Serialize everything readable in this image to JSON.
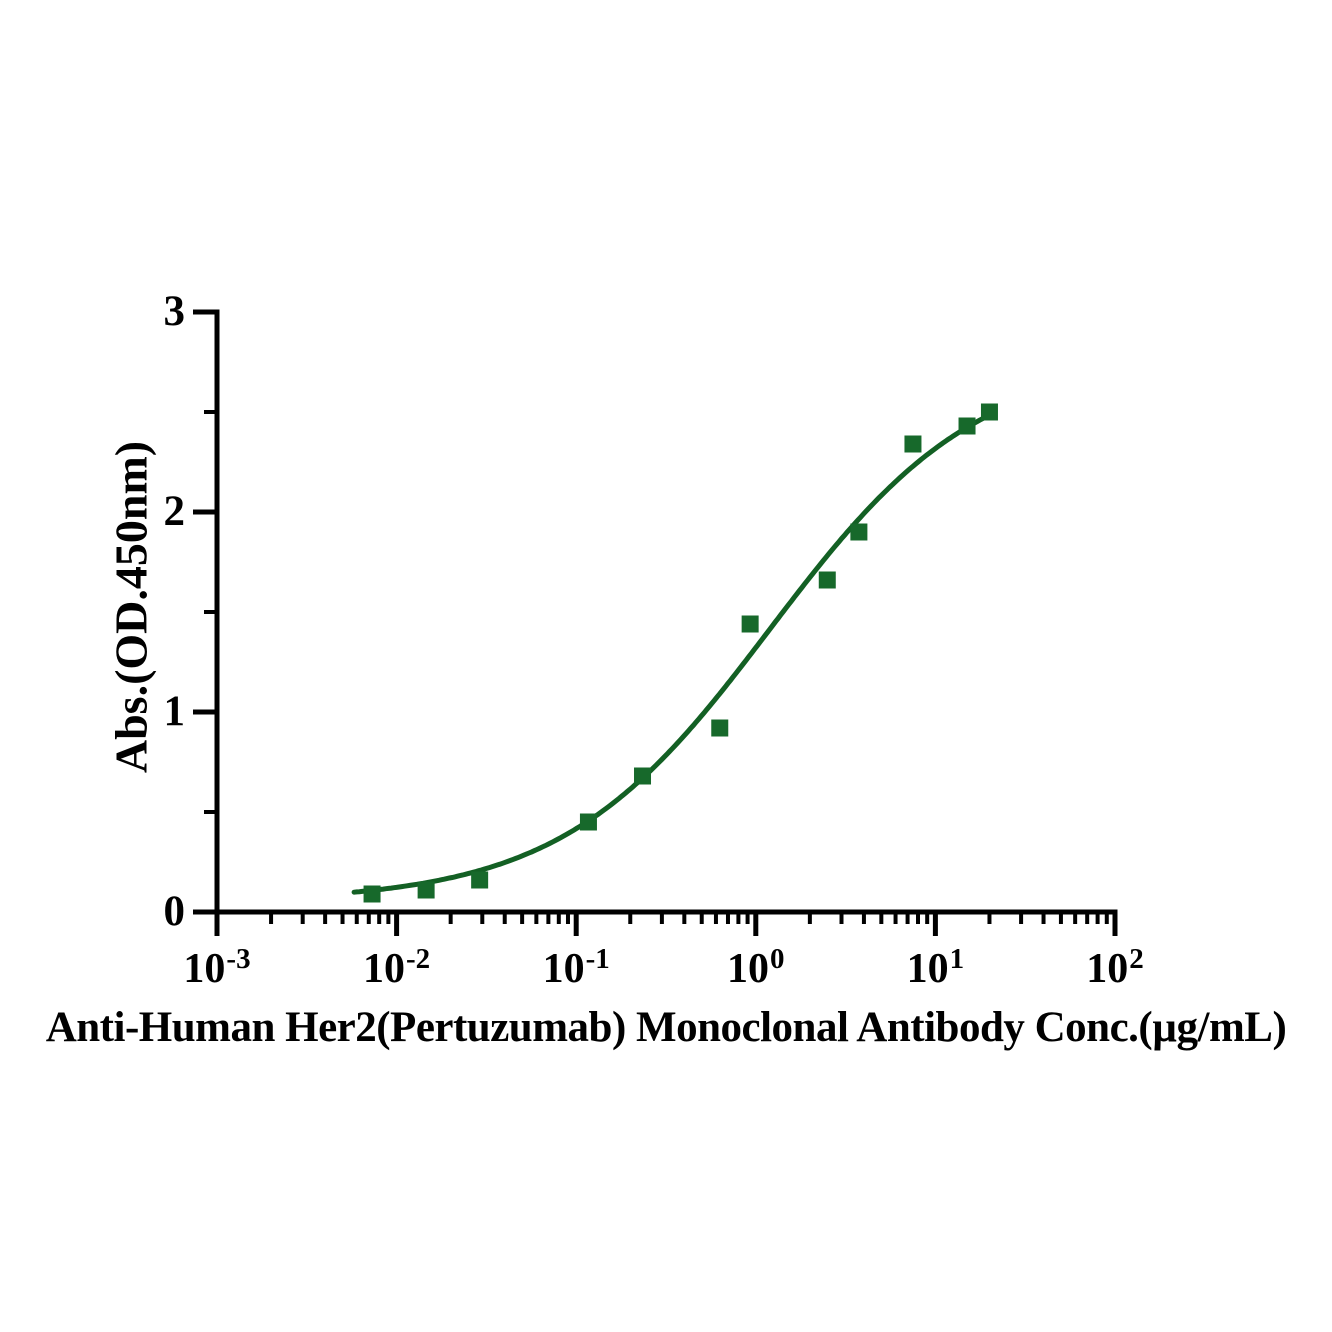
{
  "chart_data": {
    "type": "scatter",
    "description": "ELISA antibody binding curve with 4PL sigmoidal fit",
    "title": "",
    "xlabel": "Anti-Human Her2(Pertuzumab) Monoclonal Antibody Conc.(µg/mL)",
    "ylabel": "Abs.(OD.450nm)",
    "x_scale": "log10",
    "xlim": [
      0.001,
      100
    ],
    "ylim": [
      0,
      3
    ],
    "grid": false,
    "legend": null,
    "x_tick_base": "10",
    "x_tick_exponents": [
      "-3",
      "-2",
      "-1",
      "0",
      "1",
      "2"
    ],
    "y_tick_labels": [
      "0",
      "1",
      "2",
      "3"
    ],
    "y_ticks": [
      0,
      1,
      2,
      3
    ],
    "y_minor_ticks": [
      0.5,
      1.5,
      2.5
    ],
    "series": [
      {
        "name": "Anti-Human Her2(Pertuzumab) Monoclonal Antibody",
        "marker": "filled-square",
        "x": [
          0.0073,
          0.0146,
          0.029,
          0.117,
          0.234,
          0.63,
          0.93,
          2.5,
          3.75,
          7.5,
          15,
          20
        ],
        "y": [
          0.09,
          0.11,
          0.16,
          0.45,
          0.68,
          0.92,
          1.44,
          1.66,
          1.9,
          2.34,
          2.43,
          2.5
        ]
      }
    ],
    "fit_curve": {
      "model": "4PL",
      "bottom": 0.05,
      "top": 2.78,
      "ec50": 1.2,
      "hill": 0.75,
      "x_start": 0.0058,
      "x_end": 20.2
    },
    "colors": {
      "marker": "#17692b",
      "line": "#136024",
      "axis": "#000000",
      "text": "#000000"
    }
  }
}
